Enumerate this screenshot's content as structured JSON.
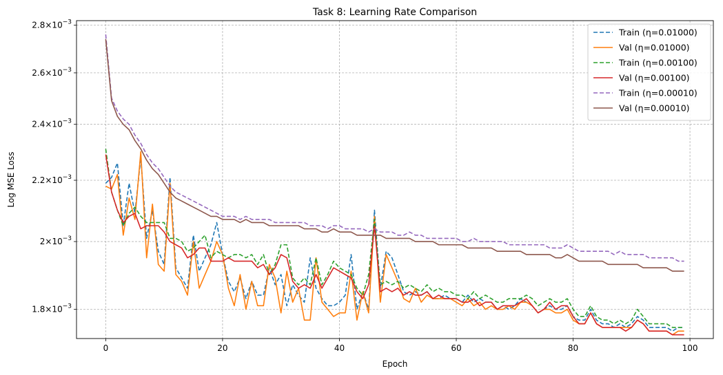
{
  "chart_data": {
    "type": "line",
    "title": "Task 8: Learning Rate Comparison",
    "xlabel": "Epoch",
    "ylabel": "Log MSE Loss",
    "yscale": "log",
    "grid": true,
    "legend_position": "top-right",
    "xlim": [
      -5,
      104
    ],
    "ylim": [
      0.00172,
      0.00282
    ],
    "x_ticks": [
      0,
      20,
      40,
      60,
      80,
      100
    ],
    "x_tick_labels": [
      "0",
      "20",
      "40",
      "60",
      "80",
      "100"
    ],
    "y_ticks": [
      0.0018,
      0.002,
      0.0022,
      0.0024,
      0.0026,
      0.0028
    ],
    "y_tick_labels": [
      {
        "mantissa": "1.8",
        "base": "10",
        "exp": "−3"
      },
      {
        "mantissa": "2",
        "base": "10",
        "exp": "−3"
      },
      {
        "mantissa": "2.2",
        "base": "10",
        "exp": "−3"
      },
      {
        "mantissa": "2.4",
        "base": "10",
        "exp": "−3"
      },
      {
        "mantissa": "2.6",
        "base": "10",
        "exp": "−3"
      },
      {
        "mantissa": "2.8",
        "base": "10",
        "exp": "−3"
      }
    ],
    "series": [
      {
        "name": "Train (η=0.01000)",
        "color": "#1f77b4",
        "dash": "dashed",
        "values": [
          0.00219,
          0.00221,
          0.00226,
          0.00205,
          0.00219,
          0.00209,
          0.00228,
          0.00201,
          0.0021,
          0.00197,
          0.00193,
          0.00221,
          0.00192,
          0.00189,
          0.00186,
          0.00202,
          0.00191,
          0.00195,
          0.00199,
          0.00206,
          0.00196,
          0.00188,
          0.00185,
          0.00189,
          0.00183,
          0.00188,
          0.00184,
          0.00184,
          0.00192,
          0.00187,
          0.0019,
          0.00181,
          0.00187,
          0.00184,
          0.00182,
          0.00195,
          0.00186,
          0.00183,
          0.00181,
          0.00181,
          0.00182,
          0.00184,
          0.00196,
          0.0018,
          0.00185,
          0.0018,
          0.0021,
          0.00186,
          0.00197,
          0.00195,
          0.0019,
          0.00185,
          0.00184,
          0.00185,
          0.00184,
          0.00185,
          0.00183,
          0.00183,
          0.00184,
          0.00183,
          0.00183,
          0.00182,
          0.00184,
          0.00182,
          0.00183,
          0.00182,
          0.00182,
          0.0018,
          0.00181,
          0.0018,
          0.00181,
          0.00183,
          0.00182,
          0.00181,
          0.00179,
          0.0018,
          0.00181,
          0.0018,
          0.0018,
          0.00181,
          0.00178,
          0.00177,
          0.00177,
          0.0018,
          0.00177,
          0.00176,
          0.00176,
          0.00175,
          0.00176,
          0.00175,
          0.00176,
          0.00178,
          0.00177,
          0.00175,
          0.00175,
          0.00175,
          0.00175,
          0.00174,
          0.00175,
          0.00175
        ]
      },
      {
        "name": "Val (η=0.01000)",
        "color": "#ff7f0e",
        "dash": "solid",
        "values": [
          0.00218,
          0.00217,
          0.00222,
          0.00202,
          0.00214,
          0.00207,
          0.0023,
          0.00195,
          0.00212,
          0.00193,
          0.00191,
          0.00219,
          0.0019,
          0.00188,
          0.00184,
          0.002,
          0.00186,
          0.0019,
          0.00194,
          0.002,
          0.00196,
          0.00186,
          0.00181,
          0.0019,
          0.0018,
          0.00188,
          0.00181,
          0.00181,
          0.00193,
          0.00189,
          0.00179,
          0.00191,
          0.00182,
          0.00186,
          0.00177,
          0.00177,
          0.00195,
          0.00182,
          0.0018,
          0.00178,
          0.00179,
          0.00179,
          0.00191,
          0.00177,
          0.00185,
          0.00179,
          0.00208,
          0.00182,
          0.00196,
          0.00192,
          0.00188,
          0.00183,
          0.00182,
          0.00186,
          0.00182,
          0.00184,
          0.00183,
          0.00183,
          0.00183,
          0.00183,
          0.00182,
          0.00181,
          0.00183,
          0.00181,
          0.00182,
          0.0018,
          0.00181,
          0.0018,
          0.0018,
          0.00181,
          0.0018,
          0.00182,
          0.00182,
          0.00181,
          0.00179,
          0.0018,
          0.0018,
          0.00179,
          0.00179,
          0.0018,
          0.00177,
          0.00176,
          0.00176,
          0.00179,
          0.00176,
          0.00175,
          0.00175,
          0.00175,
          0.00175,
          0.00175,
          0.00175,
          0.00177,
          0.00176,
          0.00174,
          0.00174,
          0.00174,
          0.00174,
          0.00173,
          0.00174,
          0.00174
        ]
      },
      {
        "name": "Train (η=0.00100)",
        "color": "#2ca02c",
        "dash": "dashed",
        "values": [
          0.00231,
          0.00216,
          0.0021,
          0.00205,
          0.00209,
          0.00211,
          0.00208,
          0.00206,
          0.00206,
          0.00206,
          0.00206,
          0.00201,
          0.00201,
          0.002,
          0.00197,
          0.00198,
          0.002,
          0.00202,
          0.00195,
          0.00197,
          0.00196,
          0.00195,
          0.00196,
          0.00196,
          0.00195,
          0.00196,
          0.00193,
          0.00196,
          0.0019,
          0.00193,
          0.00199,
          0.00199,
          0.00189,
          0.00187,
          0.00189,
          0.00187,
          0.00195,
          0.00187,
          0.0019,
          0.00194,
          0.00192,
          0.00191,
          0.0019,
          0.00186,
          0.00184,
          0.0019,
          0.00207,
          0.00187,
          0.00188,
          0.00187,
          0.00188,
          0.00186,
          0.00187,
          0.00186,
          0.00185,
          0.00187,
          0.00185,
          0.00186,
          0.00185,
          0.00185,
          0.00184,
          0.00184,
          0.00183,
          0.00185,
          0.00183,
          0.00184,
          0.00183,
          0.00182,
          0.00182,
          0.00183,
          0.00183,
          0.00183,
          0.00184,
          0.00183,
          0.00181,
          0.00182,
          0.00183,
          0.00182,
          0.00182,
          0.00183,
          0.0018,
          0.00178,
          0.00178,
          0.00181,
          0.00178,
          0.00177,
          0.00177,
          0.00176,
          0.00177,
          0.00176,
          0.00177,
          0.0018,
          0.00178,
          0.00176,
          0.00176,
          0.00176,
          0.00176,
          0.00175,
          0.00175,
          0.00175
        ]
      },
      {
        "name": "Val (η=0.00100)",
        "color": "#d62728",
        "dash": "solid",
        "values": [
          0.00229,
          0.00216,
          0.0021,
          0.00206,
          0.00208,
          0.00209,
          0.00204,
          0.00205,
          0.00205,
          0.00205,
          0.00203,
          0.002,
          0.00199,
          0.00198,
          0.00195,
          0.00196,
          0.00198,
          0.00198,
          0.00194,
          0.00194,
          0.00194,
          0.00195,
          0.00194,
          0.00194,
          0.00194,
          0.00194,
          0.00192,
          0.00193,
          0.0019,
          0.00192,
          0.00196,
          0.00195,
          0.00188,
          0.00186,
          0.00187,
          0.00186,
          0.0019,
          0.00186,
          0.00189,
          0.00192,
          0.00191,
          0.0019,
          0.00189,
          0.00185,
          0.00183,
          0.00187,
          0.00205,
          0.00185,
          0.00186,
          0.00185,
          0.00186,
          0.00184,
          0.00185,
          0.00184,
          0.00184,
          0.00185,
          0.00183,
          0.00184,
          0.00183,
          0.00183,
          0.00183,
          0.00182,
          0.00182,
          0.00183,
          0.00181,
          0.00182,
          0.00182,
          0.0018,
          0.00181,
          0.00181,
          0.00181,
          0.00182,
          0.00183,
          0.00181,
          0.00179,
          0.0018,
          0.00182,
          0.0018,
          0.00181,
          0.00181,
          0.00178,
          0.00176,
          0.00176,
          0.00179,
          0.00176,
          0.00175,
          0.00175,
          0.00175,
          0.00175,
          0.00174,
          0.00175,
          0.00177,
          0.00176,
          0.00174,
          0.00174,
          0.00174,
          0.00174,
          0.00173,
          0.00173,
          0.00173
        ]
      },
      {
        "name": "Train (η=0.00010)",
        "color": "#9467bd",
        "dash": "dashed",
        "values": [
          0.00276,
          0.0025,
          0.00245,
          0.00242,
          0.0024,
          0.00236,
          0.00233,
          0.00229,
          0.00226,
          0.00224,
          0.00221,
          0.00218,
          0.00216,
          0.00215,
          0.00214,
          0.00213,
          0.00212,
          0.00211,
          0.0021,
          0.00209,
          0.00208,
          0.00208,
          0.00208,
          0.00207,
          0.00208,
          0.00207,
          0.00207,
          0.00207,
          0.00207,
          0.00206,
          0.00206,
          0.00206,
          0.00206,
          0.00206,
          0.00206,
          0.00205,
          0.00205,
          0.00205,
          0.00204,
          0.00205,
          0.00205,
          0.00204,
          0.00204,
          0.00204,
          0.00204,
          0.00203,
          0.00204,
          0.00203,
          0.00203,
          0.00203,
          0.00202,
          0.00202,
          0.00203,
          0.00202,
          0.00202,
          0.00201,
          0.00201,
          0.00201,
          0.00201,
          0.00201,
          0.00201,
          0.002,
          0.002,
          0.00201,
          0.002,
          0.002,
          0.002,
          0.002,
          0.002,
          0.00199,
          0.00199,
          0.00199,
          0.00199,
          0.00199,
          0.00199,
          0.00199,
          0.00198,
          0.00198,
          0.00198,
          0.00199,
          0.00198,
          0.00197,
          0.00197,
          0.00197,
          0.00197,
          0.00197,
          0.00197,
          0.00196,
          0.00197,
          0.00196,
          0.00196,
          0.00196,
          0.00196,
          0.00195,
          0.00195,
          0.00195,
          0.00195,
          0.00195,
          0.00194,
          0.00194
        ]
      },
      {
        "name": "Val (η=0.00010)",
        "color": "#8c564b",
        "dash": "solid",
        "values": [
          0.00274,
          0.00249,
          0.00243,
          0.0024,
          0.00238,
          0.00234,
          0.00231,
          0.00227,
          0.00224,
          0.00222,
          0.00219,
          0.00216,
          0.00214,
          0.00213,
          0.00212,
          0.00211,
          0.0021,
          0.00209,
          0.00208,
          0.00208,
          0.00207,
          0.00207,
          0.00207,
          0.00206,
          0.00207,
          0.00206,
          0.00206,
          0.00206,
          0.00205,
          0.00205,
          0.00205,
          0.00205,
          0.00205,
          0.00205,
          0.00204,
          0.00204,
          0.00204,
          0.00203,
          0.00203,
          0.00204,
          0.00203,
          0.00203,
          0.00203,
          0.00202,
          0.00202,
          0.00202,
          0.00202,
          0.00202,
          0.00201,
          0.00201,
          0.00201,
          0.00201,
          0.00201,
          0.002,
          0.002,
          0.002,
          0.002,
          0.00199,
          0.00199,
          0.00199,
          0.00199,
          0.00199,
          0.00198,
          0.00198,
          0.00198,
          0.00198,
          0.00198,
          0.00197,
          0.00197,
          0.00197,
          0.00197,
          0.00197,
          0.00196,
          0.00196,
          0.00196,
          0.00196,
          0.00196,
          0.00195,
          0.00195,
          0.00196,
          0.00195,
          0.00194,
          0.00194,
          0.00194,
          0.00194,
          0.00194,
          0.00193,
          0.00193,
          0.00193,
          0.00193,
          0.00193,
          0.00193,
          0.00192,
          0.00192,
          0.00192,
          0.00192,
          0.00192,
          0.00191,
          0.00191,
          0.00191
        ]
      }
    ]
  }
}
